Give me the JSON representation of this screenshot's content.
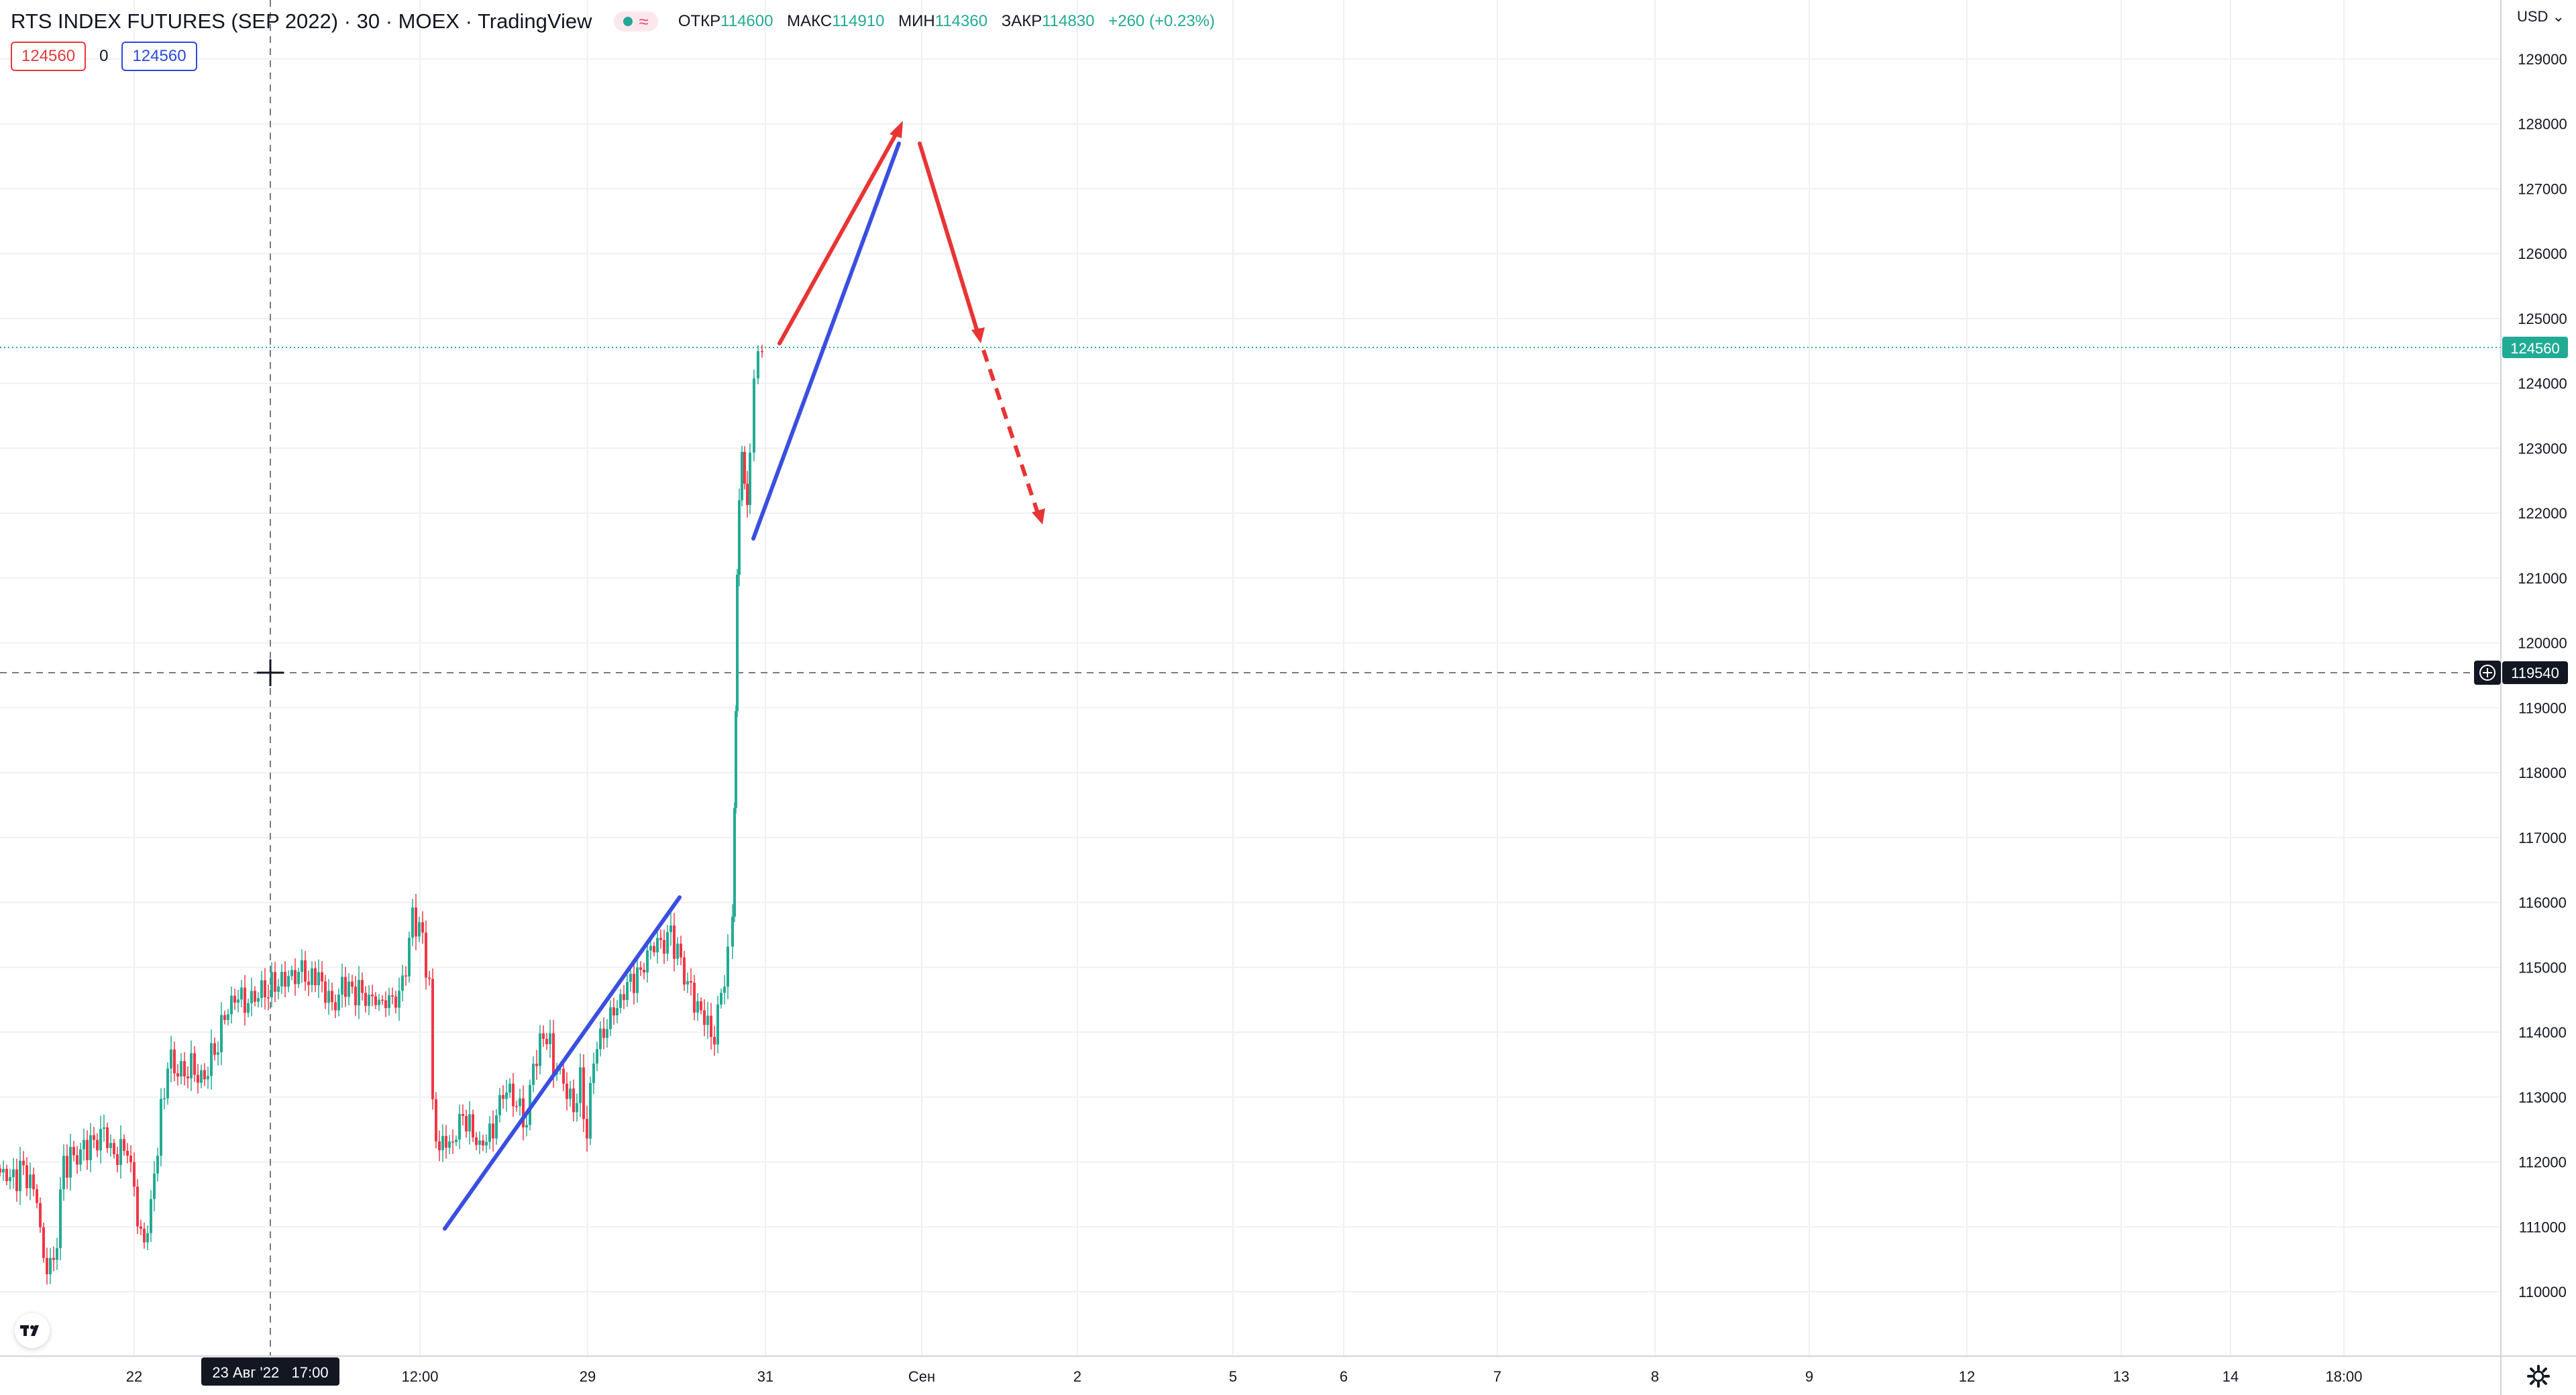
{
  "header": {
    "symbol_title": "RTS INDEX FUTURES (SEP 2022) · 30 · MOEX · TradingView",
    "open_label": "ОТКР",
    "open": "114600",
    "high_label": "МАКС",
    "high": "114910",
    "low_label": "МИН",
    "low": "114360",
    "close_label": "ЗАКР",
    "close": "114830",
    "change": "+260 (+0.23%)",
    "wave_icon": "≈"
  },
  "price_boxes": {
    "sell": "124560",
    "spread": "0",
    "buy": "124560"
  },
  "currency": "USD",
  "currency_caret": "⌄",
  "price_axis": {
    "ticks": [
      "129000",
      "128000",
      "127000",
      "126000",
      "125000",
      "124000",
      "123000",
      "122000",
      "121000",
      "120000",
      "119000",
      "118000",
      "117000",
      "116000",
      "115000",
      "114000",
      "113000",
      "112000",
      "111000",
      "110000"
    ],
    "last_price": "124560",
    "crosshair_price": "119540"
  },
  "time_axis": {
    "ticks": [
      "22",
      "12:00",
      "29",
      "31",
      "Сен",
      "2",
      "5",
      "6",
      "7",
      "8",
      "9",
      "12",
      "13",
      "14",
      "18:00"
    ],
    "crosshair_time": "23 Авг '22   17:00"
  },
  "colors": {
    "up": "#22ab94",
    "down": "#f23645",
    "blue_line": "#3a4fe0",
    "red_line": "#e83434",
    "last_price": "#22ab94",
    "crosshair": "#131722"
  },
  "icons": {
    "logo": "tradingview-logo-icon",
    "settings": "gear-icon",
    "crosshair": "crosshair-icon",
    "add": "plus-circle-icon"
  }
}
